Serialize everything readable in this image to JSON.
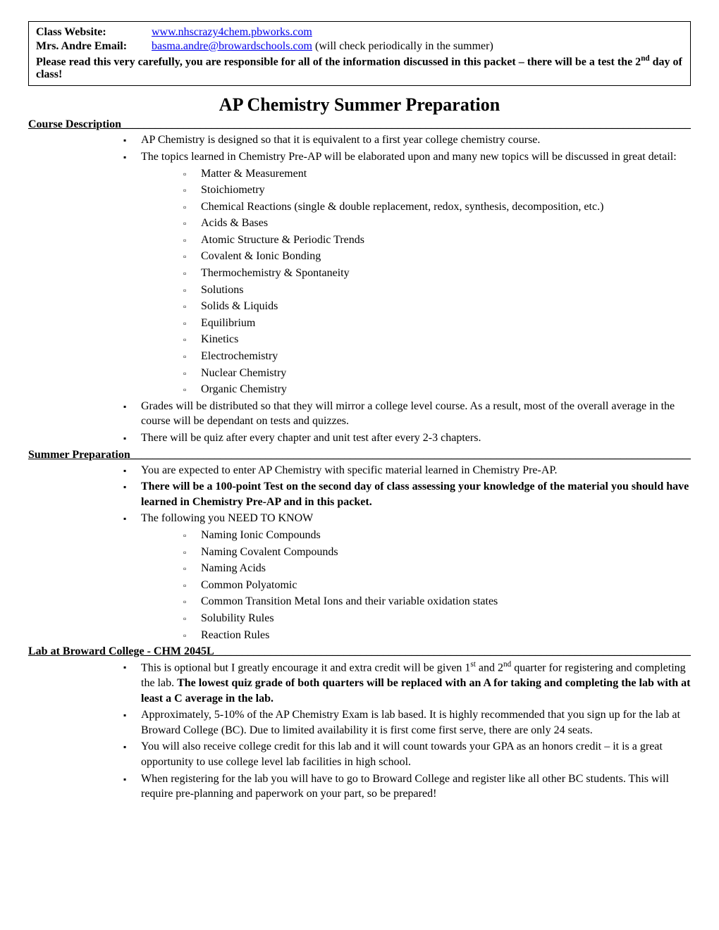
{
  "info_box": {
    "website_label": "Class Website:",
    "website_link": "www.nhscrazy4chem.pbworks.com",
    "email_label": "Mrs. Andre Email:",
    "email_link": "basma.andre@browardschools.com",
    "email_note": " (will check periodically in the summer)",
    "warning_part1": "Please read this very carefully, you are responsible for all of the information discussed in this packet – there will be a test the 2",
    "warning_sup": "nd",
    "warning_part2": " day of class!"
  },
  "title": "AP Chemistry Summer Preparation",
  "sections": {
    "course_description": {
      "heading": "Course Description",
      "bullets": [
        "AP Chemistry is designed so that it is equivalent to a first year college chemistry course.",
        "The topics learned in Chemistry Pre-AP will be elaborated upon and many new topics will be discussed in great detail:"
      ],
      "topics": [
        "Matter & Measurement",
        "Stoichiometry",
        "Chemical Reactions (single & double replacement, redox, synthesis, decomposition, etc.)",
        "Acids & Bases",
        "Atomic Structure & Periodic Trends",
        "Covalent & Ionic Bonding",
        "Thermochemistry & Spontaneity",
        "Solutions",
        "Solids & Liquids",
        "Equilibrium",
        "Kinetics",
        "Electrochemistry",
        "Nuclear Chemistry",
        "Organic Chemistry"
      ],
      "bullets2": [
        "Grades will be distributed so that they will mirror a college level course. As a result, most of the overall average in the course will be dependant on tests and quizzes.",
        "There will be quiz after every chapter and unit test after every 2-3 chapters."
      ]
    },
    "summer_prep": {
      "heading": "Summer Preparation",
      "bullet1": "You are expected to enter AP Chemistry with specific material learned in Chemistry Pre-AP.",
      "bullet2_bold": "There will be a 100-point Test on the second day of class assessing your knowledge of the material you should have learned in Chemistry Pre-AP and in this packet.",
      "bullet3": "The following you NEED TO KNOW",
      "need_to_know": [
        "Naming Ionic Compounds",
        "Naming Covalent Compounds",
        "Naming Acids",
        "Common Polyatomic",
        "Common Transition Metal Ions and their variable oxidation states",
        "Solubility Rules",
        " Reaction Rules"
      ]
    },
    "lab": {
      "heading": "Lab at Broward College - CHM 2045L",
      "b1_pre": "This is optional but I greatly encourage it and extra credit will be given 1",
      "b1_sup1": "st",
      "b1_mid": " and 2",
      "b1_sup2": "nd",
      "b1_post": " quarter for registering and completing the lab. ",
      "b1_bold": "The lowest quiz grade of both quarters will be replaced with an A for taking and completing the lab with at least a C average in the lab.",
      "b2": "Approximately, 5-10% of the AP Chemistry Exam is lab based. It is highly recommended that you sign up for the lab at Broward College (BC). Due to limited availability it is first come first serve, there are only 24 seats.",
      "b3": "You will also receive college credit for this lab and it will count towards your GPA as an honors credit – it is a great opportunity to use college level lab facilities in high school.",
      "b4": "When registering for the lab you will have to go to Broward College and register like all other BC students. This will require pre-planning and paperwork on your part, so be prepared!"
    }
  },
  "underline_fill": "_________________________________________________________________________________________________________________"
}
